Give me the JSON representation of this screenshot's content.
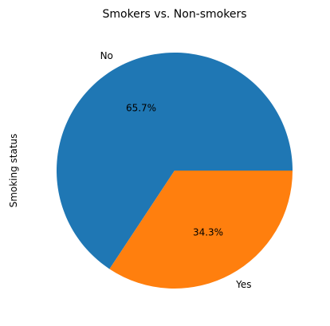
{
  "chart_data": {
    "type": "pie",
    "title": "Smokers vs. Non-smokers",
    "ylabel": "Smoking status",
    "slices": [
      {
        "label": "No",
        "value": 65.7,
        "pct_label": "65.7%",
        "color": "#1f77b4"
      },
      {
        "label": "Yes",
        "value": 34.3,
        "pct_label": "34.3%",
        "color": "#ff7f0e"
      }
    ],
    "start_angle_deg": 0,
    "direction": "counterclockwise",
    "legend": "none"
  }
}
